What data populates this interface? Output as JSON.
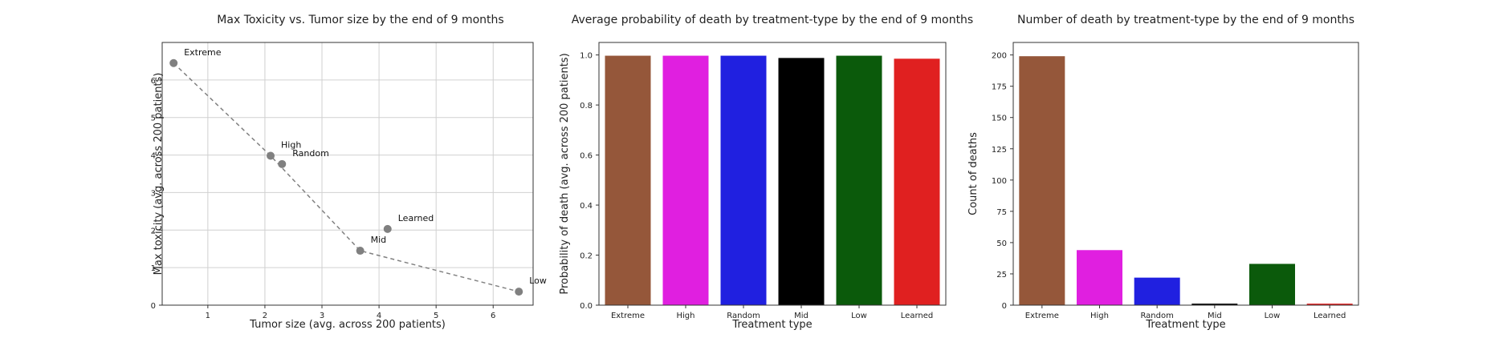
{
  "chart_data": [
    {
      "type": "scatter",
      "title": "Max Toxicity vs. Tumor size by the end of 9 months",
      "xlabel": "Tumor size (avg. across 200 patients)",
      "ylabel": "Max toxicity (avg. across 200 patients)",
      "xlim": [
        0.2,
        6.7
      ],
      "ylim": [
        0,
        7
      ],
      "xticks": [
        1,
        2,
        3,
        4,
        5,
        6
      ],
      "yticks": [
        0,
        1,
        2,
        3,
        4,
        5,
        6
      ],
      "grid": true,
      "points": [
        {
          "label": "Extreme",
          "x": 0.4,
          "y": 6.45
        },
        {
          "label": "High",
          "x": 2.1,
          "y": 3.98
        },
        {
          "label": "Random",
          "x": 2.3,
          "y": 3.76
        },
        {
          "label": "Learned",
          "x": 4.15,
          "y": 2.03
        },
        {
          "label": "Mid",
          "x": 3.67,
          "y": 1.45
        },
        {
          "label": "Low",
          "x": 6.45,
          "y": 0.36
        }
      ],
      "line_order": [
        "Extreme",
        "High",
        "Mid",
        "Low"
      ],
      "colors": {
        "marker": "#808080",
        "line": "#808080"
      }
    },
    {
      "type": "bar",
      "title": "Average probability of death by treatment-type by the end of 9 months",
      "xlabel": "Treatment type",
      "ylabel": "Probability of death (avg. across 200 patients)",
      "ylim": [
        0,
        1.05
      ],
      "yticks": [
        "0.0",
        "0.2",
        "0.4",
        "0.6",
        "0.8",
        "1.0"
      ],
      "categories": [
        "Extreme",
        "High",
        "Random",
        "Mid",
        "Low",
        "Learned"
      ],
      "values": [
        0.997,
        0.997,
        0.997,
        0.988,
        0.997,
        0.985
      ],
      "colors": [
        "#95573a",
        "#e01fe0",
        "#2020e0",
        "#000000",
        "#0b5a0b",
        "#e02020"
      ]
    },
    {
      "type": "bar",
      "title": "Number of death by treatment-type by the end of 9 months",
      "xlabel": "Treatment type",
      "ylabel": "Count of deaths",
      "ylim": [
        0,
        210
      ],
      "yticks": [
        "0",
        "25",
        "50",
        "75",
        "100",
        "125",
        "150",
        "175",
        "200"
      ],
      "categories": [
        "Extreme",
        "High",
        "Random",
        "Mid",
        "Low",
        "Learned"
      ],
      "values": [
        199,
        44,
        22,
        1.2,
        33,
        1.2
      ],
      "colors": [
        "#95573a",
        "#e01fe0",
        "#2020e0",
        "#000000",
        "#0b5a0b",
        "#e02020"
      ]
    }
  ]
}
